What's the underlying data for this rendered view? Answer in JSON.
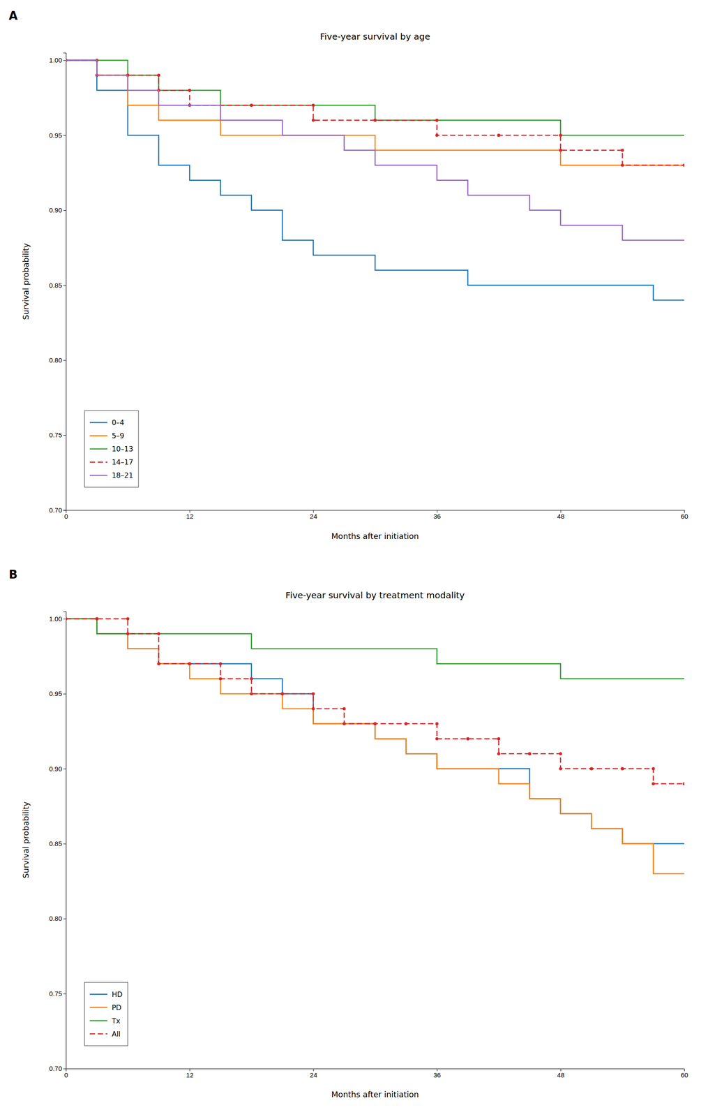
{
  "chart_data": [
    {
      "type": "step",
      "title": "Five-year survival by age",
      "x_label": "Months after initiation",
      "y_label": "Survival probability",
      "annotations": [
        "A"
      ],
      "xlim": [
        0,
        60
      ],
      "ylim": [
        0.7,
        1.005
      ],
      "xticks": [
        0,
        12,
        24,
        36,
        48,
        60
      ],
      "yticks": [
        {
          "value": 0.7,
          "label": "0.70"
        },
        0.75,
        {
          "value": 0.8,
          "label": "0.80"
        },
        0.85,
        {
          "value": 0.9,
          "label": "0.90"
        },
        0.95,
        {
          "value": 1.0,
          "label": "1.00"
        }
      ],
      "grid": false,
      "legend": "lower left",
      "series": [
        {
          "name": "0–4",
          "line_style": "solid",
          "x": [
            0,
            3,
            3,
            6,
            6,
            9,
            9,
            12,
            12,
            15,
            15,
            18,
            18,
            21,
            21,
            24,
            24,
            27,
            27,
            30,
            30,
            33,
            33,
            36,
            36,
            39,
            39,
            42,
            42,
            45,
            45,
            48,
            48,
            51,
            51,
            54,
            54,
            57,
            57,
            60
          ],
          "values": [
            1.0,
            1.0,
            0.98,
            0.98,
            0.95,
            0.95,
            0.93,
            0.93,
            0.92,
            0.92,
            0.91,
            0.91,
            0.9,
            0.9,
            0.88,
            0.88,
            0.87,
            0.87,
            0.87,
            0.87,
            0.86,
            0.86,
            0.86,
            0.86,
            0.86,
            0.86,
            0.85,
            0.85,
            0.85,
            0.85,
            0.85,
            0.85,
            0.85,
            0.85,
            0.85,
            0.85,
            0.85,
            0.85,
            0.84,
            0.84
          ]
        },
        {
          "name": "5–9",
          "line_style": "solid",
          "x": [
            0,
            3,
            3,
            6,
            6,
            9,
            9,
            12,
            12,
            15,
            15,
            18,
            18,
            24,
            24,
            30,
            30,
            36,
            36,
            42,
            42,
            48,
            48,
            54,
            54,
            60
          ],
          "values": [
            1.0,
            1.0,
            0.99,
            0.99,
            0.97,
            0.97,
            0.96,
            0.96,
            0.96,
            0.96,
            0.95,
            0.95,
            0.95,
            0.95,
            0.95,
            0.95,
            0.94,
            0.94,
            0.94,
            0.94,
            0.94,
            0.94,
            0.93,
            0.93,
            0.93,
            0.93
          ]
        },
        {
          "name": "10–13",
          "line_style": "solid",
          "x": [
            0,
            3,
            3,
            6,
            6,
            9,
            9,
            15,
            15,
            18,
            18,
            30,
            30,
            48,
            48,
            60
          ],
          "values": [
            1.0,
            1.0,
            1.0,
            1.0,
            0.99,
            0.99,
            0.98,
            0.98,
            0.97,
            0.97,
            0.97,
            0.97,
            0.96,
            0.96,
            0.95,
            0.95
          ]
        },
        {
          "name": "14–17",
          "line_style": "dashed",
          "marker": "circle",
          "x": [
            0,
            3,
            3,
            6,
            6,
            9,
            9,
            12,
            12,
            18,
            18,
            24,
            24,
            30,
            30,
            36,
            36,
            42,
            42,
            48,
            48,
            54,
            54,
            60
          ],
          "values": [
            1.0,
            1.0,
            0.99,
            0.99,
            0.99,
            0.99,
            0.98,
            0.98,
            0.97,
            0.97,
            0.97,
            0.97,
            0.96,
            0.96,
            0.96,
            0.96,
            0.95,
            0.95,
            0.95,
            0.95,
            0.94,
            0.94,
            0.93,
            0.93
          ]
        },
        {
          "name": "18–21",
          "line_style": "solid",
          "x": [
            0,
            3,
            3,
            6,
            6,
            9,
            9,
            12,
            12,
            15,
            15,
            18,
            18,
            21,
            21,
            24,
            24,
            27,
            27,
            30,
            30,
            33,
            33,
            36,
            36,
            39,
            39,
            42,
            42,
            45,
            45,
            48,
            48,
            51,
            51,
            54,
            54,
            57,
            57,
            60
          ],
          "values": [
            1.0,
            1.0,
            0.99,
            0.99,
            0.98,
            0.98,
            0.97,
            0.97,
            0.97,
            0.97,
            0.96,
            0.96,
            0.96,
            0.96,
            0.95,
            0.95,
            0.95,
            0.95,
            0.94,
            0.94,
            0.93,
            0.93,
            0.93,
            0.93,
            0.92,
            0.92,
            0.91,
            0.91,
            0.91,
            0.91,
            0.9,
            0.9,
            0.89,
            0.89,
            0.89,
            0.89,
            0.88,
            0.88,
            0.88,
            0.88
          ]
        }
      ]
    },
    {
      "type": "step",
      "title": "Five-year survival by treatment modality",
      "x_label": "Months after initiation",
      "y_label": "Survival probability",
      "annotations": [
        "B"
      ],
      "xlim": [
        0,
        60
      ],
      "ylim": [
        0.7,
        1.005
      ],
      "xticks": [
        0,
        12,
        24,
        36,
        48,
        60
      ],
      "yticks": [
        {
          "value": 0.7,
          "label": "0.70"
        },
        0.75,
        {
          "value": 0.8,
          "label": "0.80"
        },
        0.85,
        {
          "value": 0.9,
          "label": "0.90"
        },
        0.95,
        {
          "value": 1.0,
          "label": "1.00"
        }
      ],
      "grid": false,
      "legend": "lower left",
      "series": [
        {
          "name": "HD",
          "line_style": "solid",
          "x": [
            0,
            3,
            3,
            6,
            6,
            9,
            9,
            12,
            12,
            15,
            15,
            18,
            18,
            21,
            21,
            24,
            24,
            27,
            27,
            30,
            30,
            33,
            33,
            36,
            36,
            39,
            39,
            42,
            42,
            45,
            45,
            48,
            48,
            51,
            51,
            54,
            54,
            57,
            57,
            60
          ],
          "values": [
            1.0,
            1.0,
            0.99,
            0.99,
            0.98,
            0.98,
            0.97,
            0.97,
            0.97,
            0.97,
            0.97,
            0.97,
            0.96,
            0.96,
            0.95,
            0.95,
            0.93,
            0.93,
            0.93,
            0.93,
            0.92,
            0.92,
            0.91,
            0.91,
            0.9,
            0.9,
            0.9,
            0.9,
            0.9,
            0.9,
            0.88,
            0.88,
            0.87,
            0.87,
            0.86,
            0.86,
            0.85,
            0.85,
            0.85,
            0.85
          ]
        },
        {
          "name": "PD",
          "line_style": "solid",
          "x": [
            0,
            3,
            3,
            6,
            6,
            9,
            9,
            12,
            12,
            15,
            15,
            18,
            18,
            21,
            21,
            24,
            24,
            27,
            27,
            30,
            30,
            33,
            33,
            36,
            36,
            39,
            39,
            42,
            42,
            45,
            45,
            48,
            48,
            51,
            51,
            54,
            54,
            57,
            57,
            60
          ],
          "values": [
            1.0,
            1.0,
            0.99,
            0.99,
            0.98,
            0.98,
            0.97,
            0.97,
            0.96,
            0.96,
            0.95,
            0.95,
            0.95,
            0.95,
            0.94,
            0.94,
            0.93,
            0.93,
            0.93,
            0.93,
            0.92,
            0.92,
            0.91,
            0.91,
            0.9,
            0.9,
            0.9,
            0.9,
            0.89,
            0.89,
            0.88,
            0.88,
            0.87,
            0.87,
            0.86,
            0.86,
            0.85,
            0.85,
            0.83,
            0.83
          ]
        },
        {
          "name": "Tx",
          "line_style": "solid",
          "x": [
            0,
            3,
            3,
            6,
            6,
            18,
            18,
            36,
            36,
            48,
            48,
            60
          ],
          "values": [
            1.0,
            1.0,
            0.99,
            0.99,
            0.99,
            0.99,
            0.98,
            0.98,
            0.97,
            0.97,
            0.96,
            0.96
          ]
        },
        {
          "name": "All",
          "line_style": "dashed",
          "marker": "circle",
          "x": [
            0,
            3,
            3,
            6,
            6,
            9,
            9,
            12,
            12,
            15,
            15,
            18,
            18,
            21,
            21,
            24,
            24,
            27,
            27,
            30,
            30,
            33,
            33,
            36,
            36,
            39,
            39,
            42,
            42,
            45,
            45,
            48,
            48,
            51,
            51,
            54,
            54,
            57,
            57,
            60
          ],
          "values": [
            1.0,
            1.0,
            1.0,
            1.0,
            0.99,
            0.99,
            0.97,
            0.97,
            0.97,
            0.97,
            0.96,
            0.96,
            0.95,
            0.95,
            0.95,
            0.95,
            0.94,
            0.94,
            0.93,
            0.93,
            0.93,
            0.93,
            0.93,
            0.93,
            0.92,
            0.92,
            0.92,
            0.92,
            0.91,
            0.91,
            0.91,
            0.91,
            0.9,
            0.9,
            0.9,
            0.9,
            0.9,
            0.9,
            0.89,
            0.89
          ]
        }
      ]
    }
  ]
}
